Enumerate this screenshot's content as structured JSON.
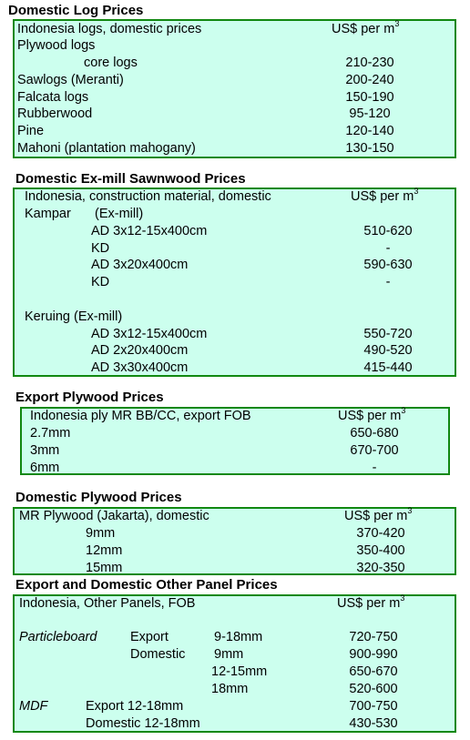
{
  "sections": {
    "log": {
      "title": "Domestic Log Prices",
      "header_label": "Indonesia logs, domestic prices",
      "unit_label": "US$ per m",
      "unit_sup": "3",
      "rows": [
        {
          "label": "Plywood logs",
          "value": ""
        },
        {
          "label": "core logs",
          "value": "210-230"
        },
        {
          "label": "Sawlogs (Meranti)",
          "value": "200-240"
        },
        {
          "label": "Falcata logs",
          "value": "150-190"
        },
        {
          "label": "Rubberwood",
          "value": "95-120"
        },
        {
          "label": "Pine",
          "value": "120-140"
        },
        {
          "label": "Mahoni (plantation mahogany)",
          "value": "130-150"
        }
      ]
    },
    "sawn": {
      "title": "Domestic Ex-mill Sawnwood Prices",
      "header_label": "Indonesia, construction material, domestic",
      "unit_label": "US$ per m",
      "unit_sup": "3",
      "kampar_label": "Kampar",
      "kampar_sub": "(Ex-mill)",
      "kampar_rows": [
        {
          "label": "AD 3x12-15x400cm",
          "value": "510-620"
        },
        {
          "label": "KD",
          "value": "-"
        },
        {
          "label": "AD 3x20x400cm",
          "value": "590-630"
        },
        {
          "label": "KD",
          "value": "-"
        }
      ],
      "keruing_label": "Keruing (Ex-mill)",
      "keruing_rows": [
        {
          "label": "AD 3x12-15x400cm",
          "value": "550-720"
        },
        {
          "label": "AD 2x20x400cm",
          "value": "490-520"
        },
        {
          "label": "AD 3x30x400cm",
          "value": "415-440"
        }
      ]
    },
    "export_ply": {
      "title": "Export Plywood Prices",
      "header_label": "Indonesia ply MR BB/CC, export FOB",
      "unit_label": "US$ per m",
      "unit_sup": "3",
      "rows": [
        {
          "label": "2.7mm",
          "value": "650-680"
        },
        {
          "label": "3mm",
          "value": "670-700"
        },
        {
          "label": "6mm",
          "value": "-"
        }
      ]
    },
    "dom_ply": {
      "title": "Domestic Plywood Prices",
      "header_label": "MR Plywood (Jakarta), domestic",
      "unit_label": "US$ per m",
      "unit_sup": "3",
      "rows": [
        {
          "label": "9mm",
          "value": "370-420"
        },
        {
          "label": "12mm",
          "value": "350-400"
        },
        {
          "label": "15mm",
          "value": "320-350"
        }
      ]
    },
    "panel": {
      "title": "Export and Domestic Other Panel Prices",
      "header_label": "Indonesia, Other Panels, FOB",
      "unit_label": "US$ per m",
      "unit_sup": "3",
      "particleboard": "Particleboard",
      "export": "Export",
      "domestic": "Domestic",
      "pb_rows": [
        {
          "size": "9-18mm",
          "value": "720-750"
        },
        {
          "size": "9mm",
          "value": "900-990"
        },
        {
          "size": "12-15mm",
          "value": "650-670"
        },
        {
          "size": "18mm",
          "value": "520-600"
        }
      ],
      "mdf": "MDF",
      "mdf_rows": [
        {
          "label": "Export 12-18mm",
          "value": "700-750"
        },
        {
          "label": "Domestic 12-18mm",
          "value": "430-530"
        }
      ]
    }
  }
}
